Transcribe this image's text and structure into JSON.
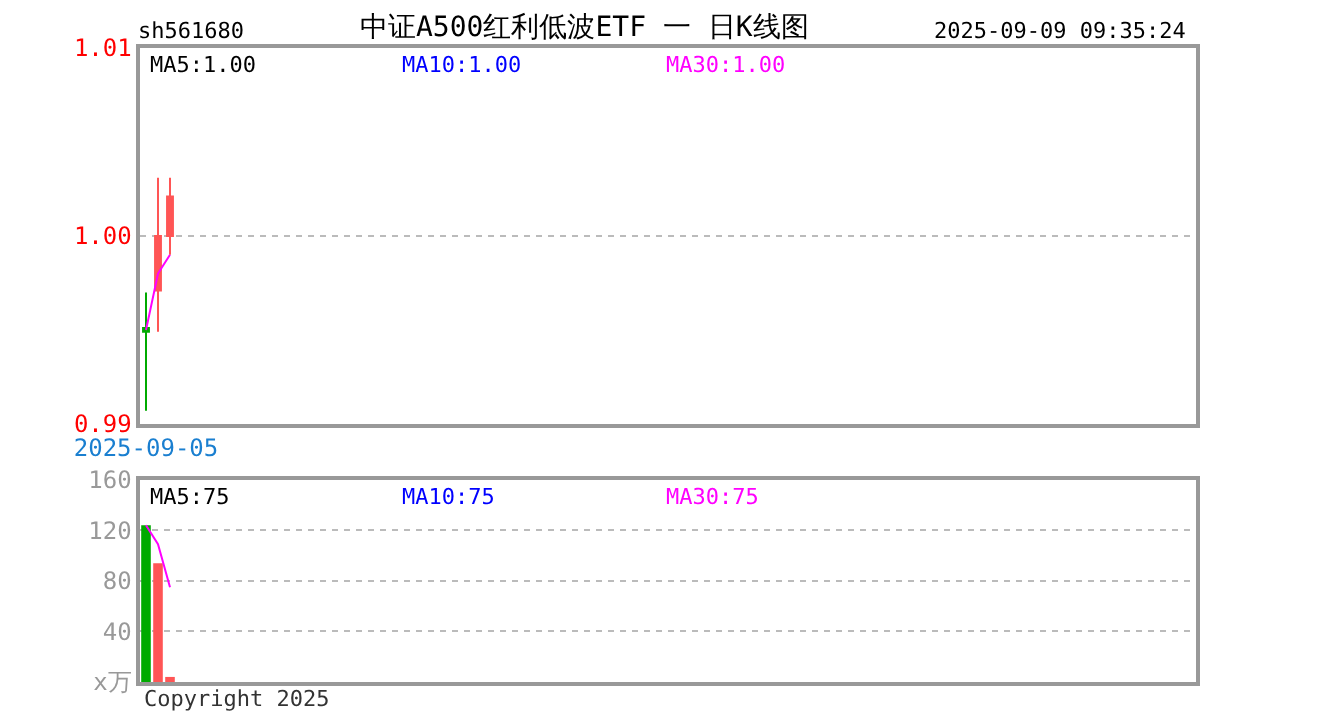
{
  "chart_data": [
    {
      "type": "candlestick",
      "title": "中证A500红利低波ETF 一 日K线图",
      "annotations": [
        "sh561680",
        "2025-09-09 09:35:24",
        "MA5:1.00",
        "MA10:1.00",
        "MA30:1.00"
      ],
      "categories": [
        "2025-09-05",
        null,
        null,
        null,
        null,
        null,
        null,
        null,
        null,
        null,
        null,
        null,
        null,
        null,
        null,
        null,
        null,
        null,
        null,
        null,
        null,
        null,
        null,
        null,
        null,
        null,
        null,
        null,
        null,
        null,
        null,
        null,
        null,
        null,
        null,
        null,
        null,
        null,
        null,
        null,
        null,
        null,
        null,
        null,
        null,
        null,
        null,
        null,
        null,
        null,
        null,
        null,
        null,
        null,
        null,
        null,
        null,
        null,
        null,
        null,
        null,
        null,
        null,
        null,
        null,
        null,
        null,
        null,
        null,
        null,
        null,
        null,
        null,
        null,
        null,
        null,
        null,
        null,
        null,
        null,
        null,
        null,
        null,
        null,
        null,
        null,
        null,
        null
      ],
      "ohlc": [
        [
          0.9951,
          0.997,
          0.9907,
          0.9949
        ],
        [
          0.9971,
          1.0031,
          0.9949,
          1.0
        ],
        [
          1.0,
          1.0031,
          0.999,
          1.0021
        ],
        null,
        null,
        null,
        null,
        null,
        null,
        null,
        null,
        null,
        null,
        null,
        null,
        null,
        null,
        null,
        null,
        null,
        null,
        null,
        null,
        null,
        null,
        null,
        null,
        null,
        null,
        null,
        null,
        null,
        null,
        null,
        null,
        null,
        null,
        null,
        null,
        null,
        null,
        null,
        null,
        null,
        null,
        null,
        null,
        null,
        null,
        null,
        null,
        null,
        null,
        null,
        null,
        null,
        null,
        null,
        null,
        null,
        null,
        null,
        null,
        null,
        null,
        null,
        null,
        null,
        null,
        null,
        null,
        null,
        null,
        null,
        null,
        null,
        null,
        null,
        null,
        null,
        null,
        null,
        null,
        null,
        null,
        null,
        null,
        null
      ],
      "colors": [
        "#00aa00",
        "#ff5555",
        "#ff5555",
        null,
        null,
        null,
        null,
        null,
        null,
        null,
        null,
        null,
        null,
        null,
        null,
        null,
        null,
        null,
        null,
        null,
        null,
        null,
        null,
        null,
        null,
        null,
        null,
        null,
        null,
        null,
        null,
        null,
        null,
        null,
        null,
        null,
        null,
        null,
        null,
        null,
        null,
        null,
        null,
        null,
        null,
        null,
        null,
        null,
        null,
        null,
        null,
        null,
        null,
        null,
        null,
        null,
        null,
        null,
        null,
        null,
        null,
        null,
        null,
        null,
        null,
        null,
        null,
        null,
        null,
        null,
        null,
        null,
        null,
        null,
        null,
        null,
        null,
        null,
        null,
        null,
        null,
        null,
        null,
        null,
        null,
        null,
        null,
        null
      ],
      "series": [
        {
          "type": "line",
          "color": "#ff00ff",
          "values": [
            0.995,
            0.998,
            0.999,
            null,
            null,
            null,
            null,
            null,
            null,
            null,
            null,
            null,
            null,
            null,
            null,
            null,
            null,
            null,
            null,
            null,
            null,
            null,
            null,
            null,
            null,
            null,
            null,
            null,
            null,
            null,
            null,
            null,
            null,
            null,
            null,
            null,
            null,
            null,
            null,
            null,
            null,
            null,
            null,
            null,
            null,
            null,
            null,
            null,
            null,
            null,
            null,
            null,
            null,
            null,
            null,
            null,
            null,
            null,
            null,
            null,
            null,
            null,
            null,
            null,
            null,
            null,
            null,
            null,
            null,
            null,
            null,
            null,
            null,
            null,
            null,
            null,
            null,
            null,
            null,
            null,
            null,
            null,
            null,
            null,
            null,
            null,
            null,
            null
          ]
        }
      ],
      "ylim": [
        0.99,
        1.01
      ],
      "yticks": [
        {
          "value": 0.99,
          "label": "0.99"
        },
        {
          "value": 1.0,
          "label": "1.00"
        },
        {
          "value": 1.01,
          "label": "1.01"
        }
      ],
      "grid": "y"
    },
    {
      "type": "bar",
      "tick_labels": "y",
      "annotations": [
        "MA5:75",
        "MA10:75",
        "MA30:75",
        "Copyright 2025"
      ],
      "categories": [
        null,
        null,
        null,
        null,
        null,
        null,
        null,
        null,
        null,
        null,
        null,
        null,
        null,
        null,
        null,
        null,
        null,
        null,
        null,
        null,
        null,
        null,
        null,
        null,
        null,
        null,
        null,
        null,
        null,
        null,
        null,
        null,
        null,
        null,
        null,
        null,
        null,
        null,
        null,
        null,
        null,
        null,
        null,
        null,
        null,
        null,
        null,
        null,
        null,
        null,
        null,
        null,
        null,
        null,
        null,
        null,
        null,
        null,
        null,
        null,
        null,
        null,
        null,
        null,
        null,
        null,
        null,
        null,
        null,
        null,
        null,
        null,
        null,
        null,
        null,
        null,
        null,
        null,
        null,
        null,
        null,
        null,
        null,
        null,
        null,
        null,
        null,
        null
      ],
      "series": [
        {
          "type": "bar",
          "colors": [
            "#00aa00",
            "#ff5555",
            "#ff5555",
            null,
            null,
            null,
            null,
            null,
            null,
            null,
            null,
            null,
            null,
            null,
            null,
            null,
            null,
            null,
            null,
            null,
            null,
            null,
            null,
            null,
            null,
            null,
            null,
            null,
            null,
            null,
            null,
            null,
            null,
            null,
            null,
            null,
            null,
            null,
            null,
            null,
            null,
            null,
            null,
            null,
            null,
            null,
            null,
            null,
            null,
            null,
            null,
            null,
            null,
            null,
            null,
            null,
            null,
            null,
            null,
            null,
            null,
            null,
            null,
            null,
            null,
            null,
            null,
            null,
            null,
            null,
            null,
            null,
            null,
            null,
            null,
            null,
            null,
            null,
            null,
            null,
            null,
            null,
            null,
            null,
            null,
            null,
            null,
            null
          ],
          "values": [
            124,
            94,
            4,
            null,
            null,
            null,
            null,
            null,
            null,
            null,
            null,
            null,
            null,
            null,
            null,
            null,
            null,
            null,
            null,
            null,
            null,
            null,
            null,
            null,
            null,
            null,
            null,
            null,
            null,
            null,
            null,
            null,
            null,
            null,
            null,
            null,
            null,
            null,
            null,
            null,
            null,
            null,
            null,
            null,
            null,
            null,
            null,
            null,
            null,
            null,
            null,
            null,
            null,
            null,
            null,
            null,
            null,
            null,
            null,
            null,
            null,
            null,
            null,
            null,
            null,
            null,
            null,
            null,
            null,
            null,
            null,
            null,
            null,
            null,
            null,
            null,
            null,
            null,
            null,
            null,
            null,
            null,
            null,
            null,
            null,
            null,
            null,
            null
          ]
        },
        {
          "type": "line",
          "color": "#ff00ff",
          "values": [
            124,
            109,
            75,
            null,
            null,
            null,
            null,
            null,
            null,
            null,
            null,
            null,
            null,
            null,
            null,
            null,
            null,
            null,
            null,
            null,
            null,
            null,
            null,
            null,
            null,
            null,
            null,
            null,
            null,
            null,
            null,
            null,
            null,
            null,
            null,
            null,
            null,
            null,
            null,
            null,
            null,
            null,
            null,
            null,
            null,
            null,
            null,
            null,
            null,
            null,
            null,
            null,
            null,
            null,
            null,
            null,
            null,
            null,
            null,
            null,
            null,
            null,
            null,
            null,
            null,
            null,
            null,
            null,
            null,
            null,
            null,
            null,
            null,
            null,
            null,
            null,
            null,
            null,
            null,
            null,
            null,
            null,
            null,
            null,
            null,
            null,
            null,
            null
          ]
        }
      ],
      "ylim": [
        0,
        160
      ],
      "yticks": [
        {
          "value": 0,
          "label": "x万"
        },
        40,
        80,
        120,
        160
      ],
      "grid": "y"
    }
  ]
}
